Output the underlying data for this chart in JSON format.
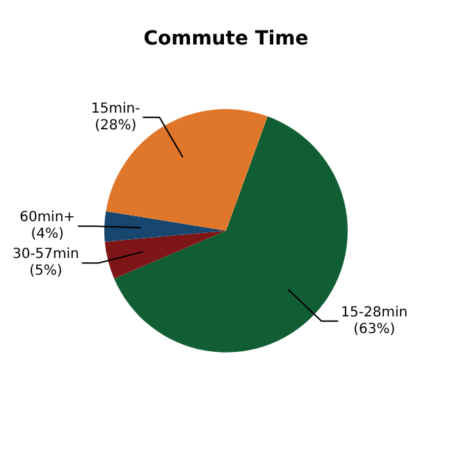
{
  "chart_data": {
    "type": "pie",
    "title": "Commute Time",
    "categories": [
      "15-28min",
      "30-57min",
      "60min+",
      "15min-"
    ],
    "values": [
      63,
      5,
      4,
      28
    ],
    "value_labels": [
      "(63%)",
      "(5%)",
      "(4%)",
      "(28%)"
    ],
    "colors": [
      "#115e34",
      "#7e1618",
      "#17466e",
      "#e0762a"
    ],
    "legend": false
  }
}
